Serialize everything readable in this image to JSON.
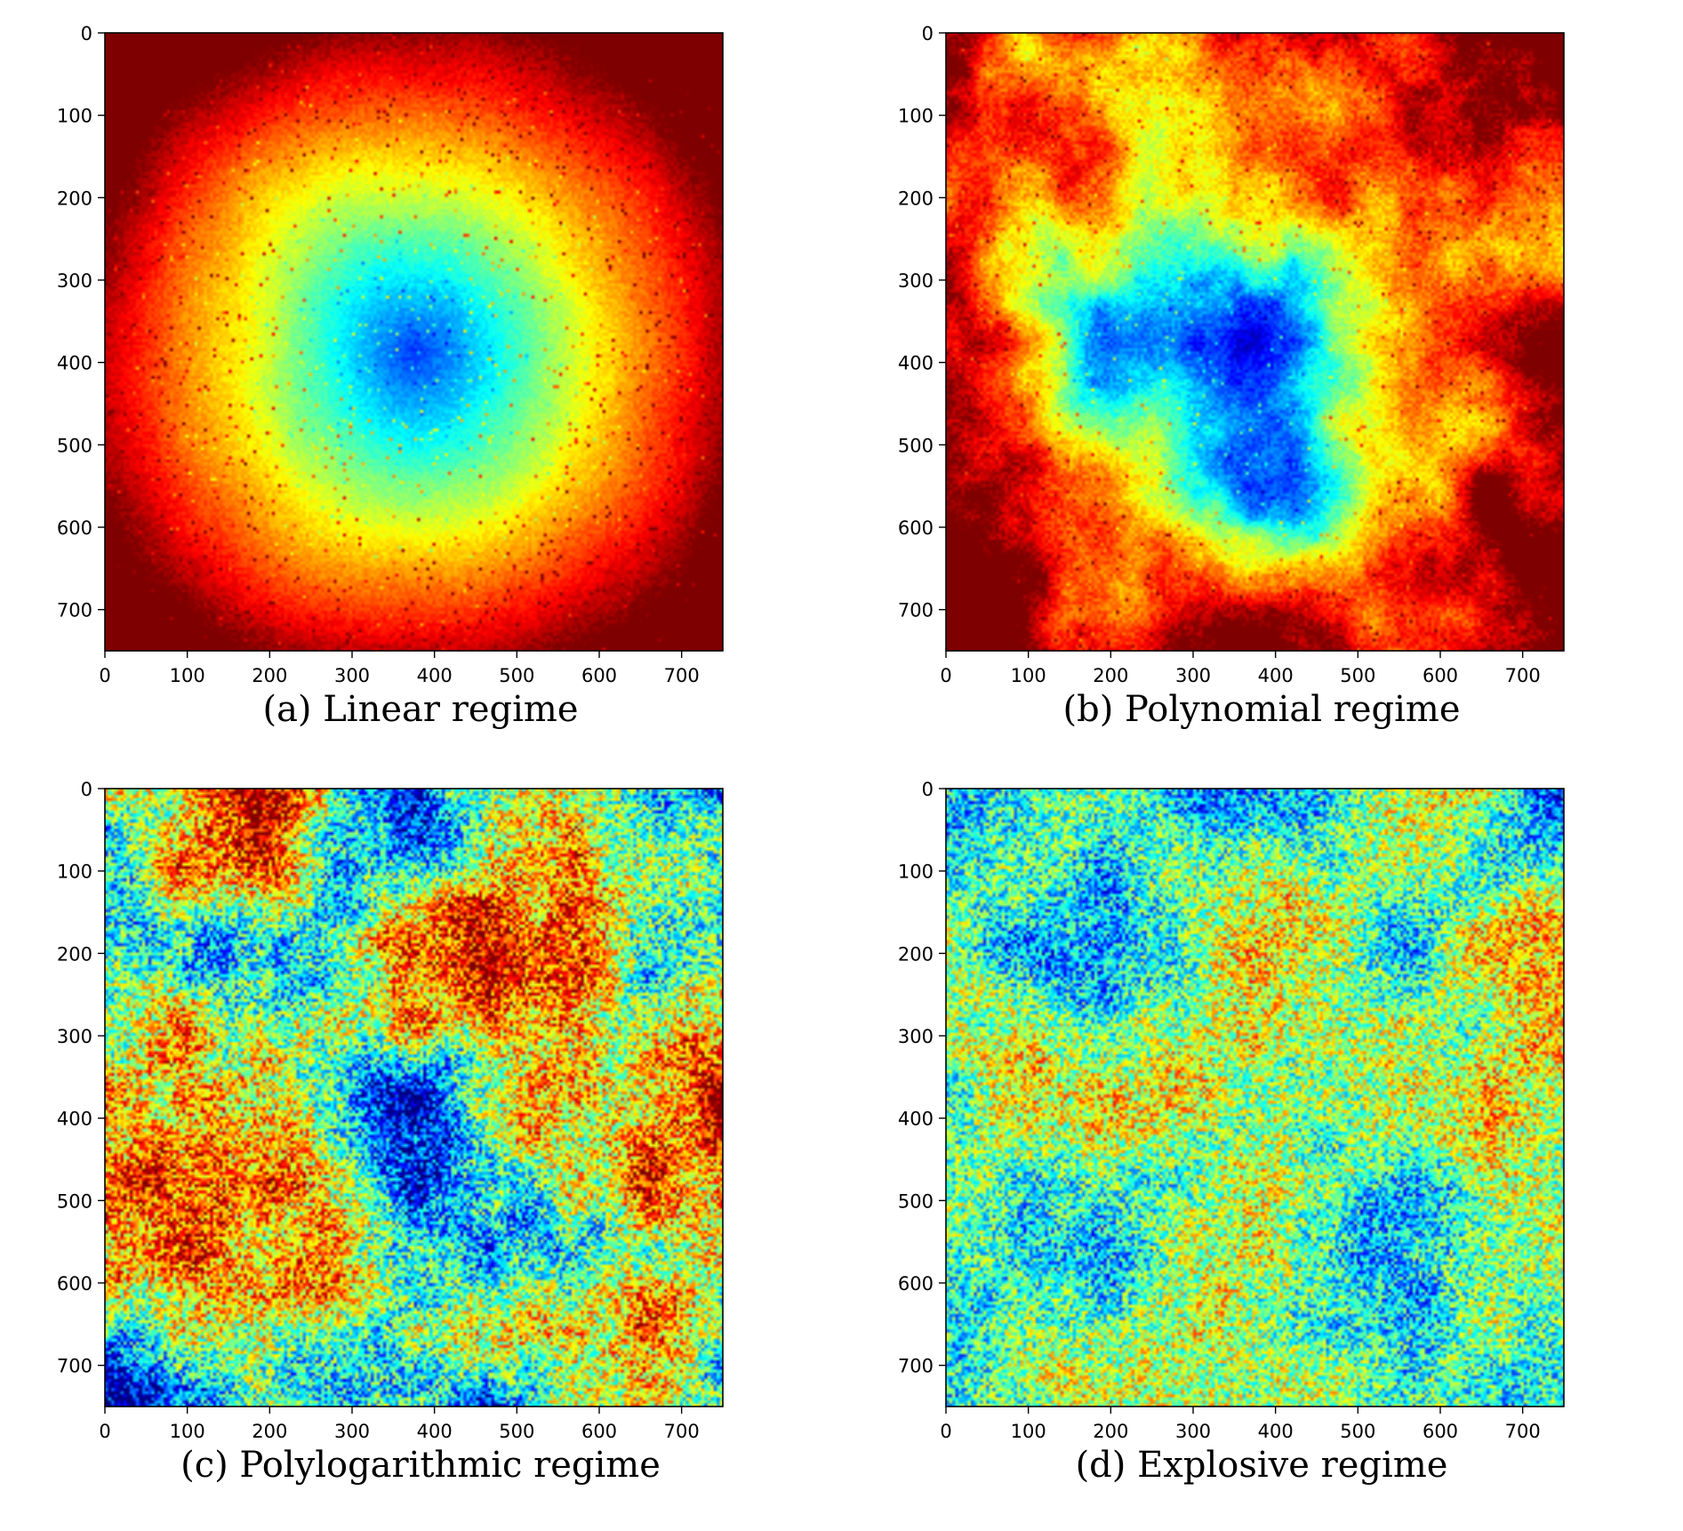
{
  "chart_data": [
    {
      "type": "heatmap",
      "caption": "(a) Linear regime",
      "pattern": "radial",
      "xlim": [
        0,
        750
      ],
      "ylim": [
        750,
        0
      ],
      "xticks": [
        0,
        100,
        200,
        300,
        400,
        500,
        600,
        700
      ],
      "yticks": [
        0,
        100,
        200,
        300,
        400,
        500,
        600,
        700
      ],
      "colormap": "jet",
      "center": [
        375,
        385
      ],
      "seed": 11
    },
    {
      "type": "heatmap",
      "caption": "(b) Polynomial regime",
      "pattern": "clustered",
      "xlim": [
        0,
        750
      ],
      "ylim": [
        750,
        0
      ],
      "xticks": [
        0,
        100,
        200,
        300,
        400,
        500,
        600,
        700
      ],
      "yticks": [
        0,
        100,
        200,
        300,
        400,
        500,
        600,
        700
      ],
      "colormap": "jet",
      "seed": 23
    },
    {
      "type": "heatmap",
      "caption": "(c) Polylogarithmic regime",
      "pattern": "diffuse",
      "xlim": [
        0,
        750
      ],
      "ylim": [
        750,
        0
      ],
      "xticks": [
        0,
        100,
        200,
        300,
        400,
        500,
        600,
        700
      ],
      "yticks": [
        0,
        100,
        200,
        300,
        400,
        500,
        600,
        700
      ],
      "colormap": "jet",
      "seed": 37
    },
    {
      "type": "heatmap",
      "caption": "(d) Explosive regime",
      "pattern": "uniform",
      "xlim": [
        0,
        750
      ],
      "ylim": [
        750,
        0
      ],
      "xticks": [
        0,
        100,
        200,
        300,
        400,
        500,
        600,
        700
      ],
      "yticks": [
        0,
        100,
        200,
        300,
        400,
        500,
        600,
        700
      ],
      "colormap": "jet",
      "seed": 53
    }
  ]
}
